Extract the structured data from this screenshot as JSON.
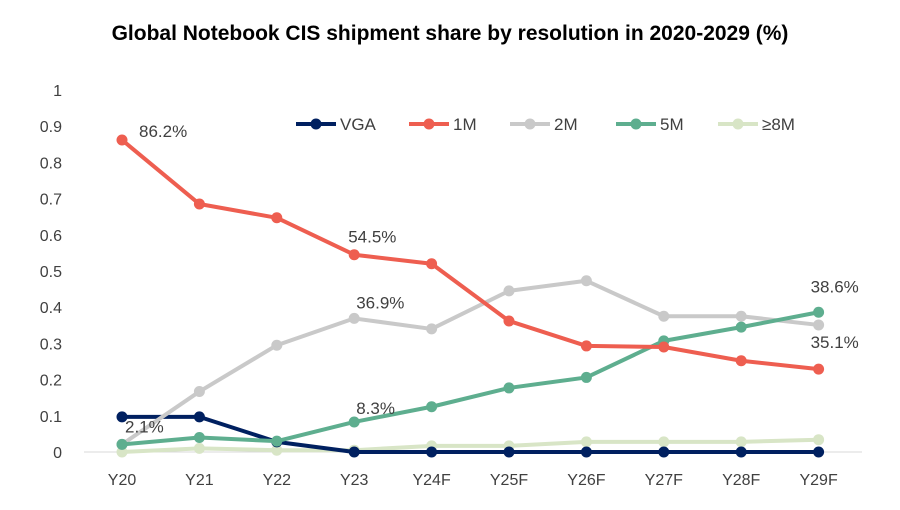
{
  "chart_data": {
    "type": "line",
    "title": "Global Notebook CIS shipment share by resolution in 2020-2029 (%)",
    "xlabel": "",
    "ylabel": "",
    "categories": [
      "Y20",
      "Y21",
      "Y22",
      "Y23",
      "Y24F",
      "Y25F",
      "Y26F",
      "Y27F",
      "Y28F",
      "Y29F"
    ],
    "ylim": [
      0,
      1
    ],
    "yticks": [
      "0",
      "0.1",
      "0.2",
      "0.3",
      "0.4",
      "0.5",
      "0.6",
      "0.7",
      "0.8",
      "0.9",
      "1"
    ],
    "grid": false,
    "legend_position": "top-right",
    "series": [
      {
        "name": "VGA",
        "color": "#002060",
        "values": [
          0.097,
          0.097,
          0.028,
          0.0,
          0.0,
          0.0,
          0.0,
          0.0,
          0.0,
          0.0
        ]
      },
      {
        "name": "1M",
        "color": "#EE5E50",
        "values": [
          0.862,
          0.685,
          0.647,
          0.545,
          0.52,
          0.362,
          0.293,
          0.29,
          0.252,
          0.229
        ]
      },
      {
        "name": "2M",
        "color": "#C9C9C9",
        "values": [
          0.021,
          0.167,
          0.295,
          0.369,
          0.34,
          0.445,
          0.473,
          0.375,
          0.375,
          0.351
        ]
      },
      {
        "name": "5M",
        "color": "#5EAE8F",
        "values": [
          0.021,
          0.04,
          0.03,
          0.083,
          0.125,
          0.177,
          0.206,
          0.307,
          0.345,
          0.386
        ]
      },
      {
        "name": "≥8M",
        "color": "#D8E5C6",
        "values": [
          0.0,
          0.01,
          0.005,
          0.005,
          0.017,
          0.017,
          0.028,
          0.028,
          0.028,
          0.034
        ]
      }
    ],
    "annotations": [
      {
        "text": "86.2%",
        "series": "1M",
        "index": 0
      },
      {
        "text": "54.5%",
        "series": "1M",
        "index": 3
      },
      {
        "text": "36.9%",
        "series": "2M",
        "index": 3
      },
      {
        "text": "8.3%",
        "series": "5M",
        "index": 3
      },
      {
        "text": "2.1%",
        "series": "2M",
        "index": 0
      },
      {
        "text": "38.6%",
        "series": "5M",
        "index": 9
      },
      {
        "text": "35.1%",
        "series": "2M",
        "index": 9
      }
    ]
  }
}
